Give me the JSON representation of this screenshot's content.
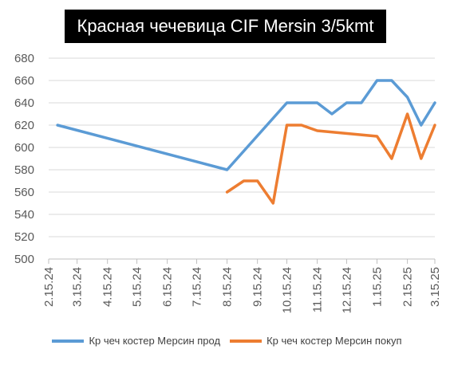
{
  "chart_data": {
    "type": "line",
    "title": "Красная чечевица CIF Mersin 3/5kmt",
    "categories": [
      "2.15.24",
      "3.15.24",
      "4.15.24",
      "5.15.24",
      "6.15.24",
      "7.15.24",
      "8.15.24",
      "9.15.24",
      "10.15.24",
      "11.15.24",
      "12.15.24",
      "1.15.25",
      "2.15.25",
      "3.15.25"
    ],
    "ylim": [
      500,
      680
    ],
    "yticks": [
      500,
      520,
      540,
      560,
      580,
      600,
      620,
      640,
      660,
      680
    ],
    "grid": true,
    "legend_position": "bottom",
    "series": [
      {
        "name": "Кр чеч  костер Мерсин прод",
        "color": "#5B9BD5",
        "points": [
          [
            "2.24.24",
            620
          ],
          [
            "8.15.24",
            580
          ],
          [
            "10.15.24",
            640
          ],
          [
            "11.15.24",
            640
          ],
          [
            "11.30.24",
            630
          ],
          [
            "12.15.24",
            640
          ],
          [
            "12.30.24",
            640
          ],
          [
            "1.15.25",
            660
          ],
          [
            "1.30.25",
            660
          ],
          [
            "2.15.25",
            645
          ],
          [
            "3.1.25",
            620
          ],
          [
            "3.15.25",
            640
          ]
        ]
      },
      {
        "name": "Кр чеч  костер Мерсин покуп",
        "color": "#ED7D31",
        "points": [
          [
            "8.15.24",
            560
          ],
          [
            "9.1.24",
            570
          ],
          [
            "9.15.24",
            570
          ],
          [
            "10.1.24",
            550
          ],
          [
            "10.15.24",
            620
          ],
          [
            "10.30.24",
            620
          ],
          [
            "11.15.24",
            615
          ],
          [
            "1.15.25",
            610
          ],
          [
            "1.30.25",
            590
          ],
          [
            "2.15.25",
            630
          ],
          [
            "3.1.25",
            590
          ],
          [
            "3.15.25",
            620
          ]
        ]
      }
    ]
  }
}
